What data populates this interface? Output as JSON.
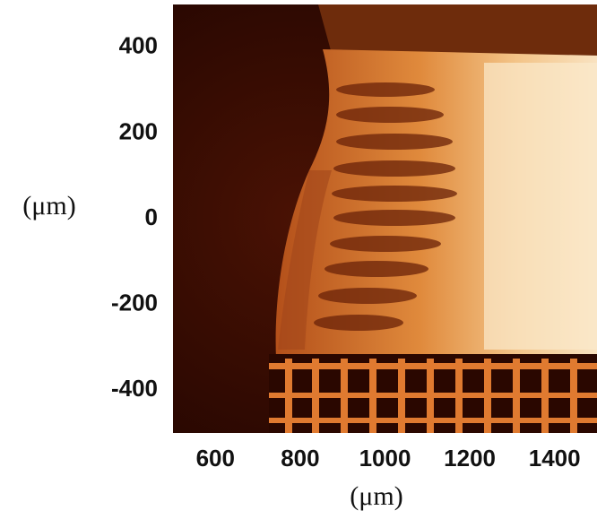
{
  "chart_data": {
    "type": "image",
    "xlabel": "(μm)",
    "ylabel": "(μm)",
    "xlim": [
      500,
      1500
    ],
    "xticks": [
      600,
      800,
      1000,
      1200,
      1400
    ],
    "ylim": [
      -500,
      500
    ],
    "yticks": [
      400,
      200,
      0,
      -200,
      -400
    ]
  }
}
